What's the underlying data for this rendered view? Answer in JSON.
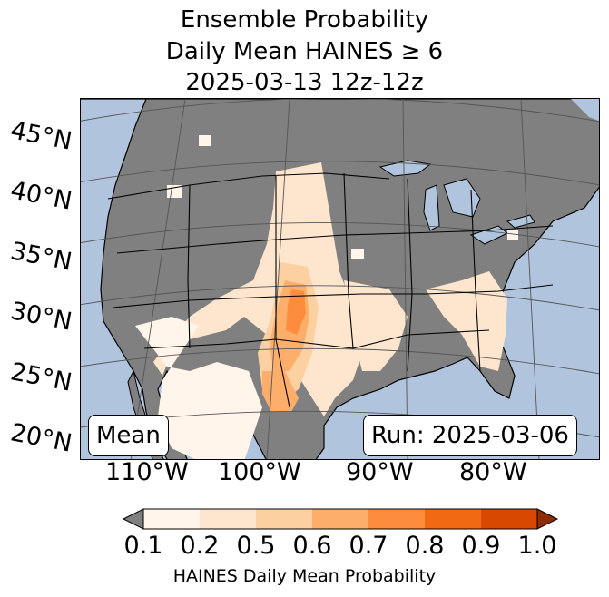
{
  "title": {
    "line1": "Ensemble Probability",
    "line2": "Daily Mean HAINES ≥ 6",
    "line3": "2025-03-13 12z-12z"
  },
  "map": {
    "lat_labels": [
      "45°N",
      "40°N",
      "35°N",
      "30°N",
      "25°N",
      "20°N"
    ],
    "lon_labels": [
      "110°W",
      "100°W",
      "90°W",
      "80°W"
    ],
    "stat_label": "Mean",
    "run_label": "Run: 2025-03-06",
    "colors": {
      "ocean": "#b0c4de",
      "land_no_data": "#808080",
      "state_border": "#000000",
      "gridline": "#555555"
    }
  },
  "colorbar": {
    "label": "HAINES Daily Mean Probability",
    "ticks": [
      "0.1",
      "0.2",
      "0.5",
      "0.6",
      "0.7",
      "0.8",
      "0.9",
      "1.0"
    ],
    "under_color": "#808080",
    "bins": [
      {
        "range": "0.1-0.2",
        "color": "#fff5eb"
      },
      {
        "range": "0.2-0.5",
        "color": "#fee6ce"
      },
      {
        "range": "0.5-0.6",
        "color": "#fdd0a2"
      },
      {
        "range": "0.6-0.7",
        "color": "#fdae6b"
      },
      {
        "range": "0.7-0.8",
        "color": "#fd8d3c"
      },
      {
        "range": "0.8-0.9",
        "color": "#f16913"
      },
      {
        "range": "0.9-1.0",
        "color": "#d94801"
      }
    ],
    "over_color": "#8c2d04"
  }
}
